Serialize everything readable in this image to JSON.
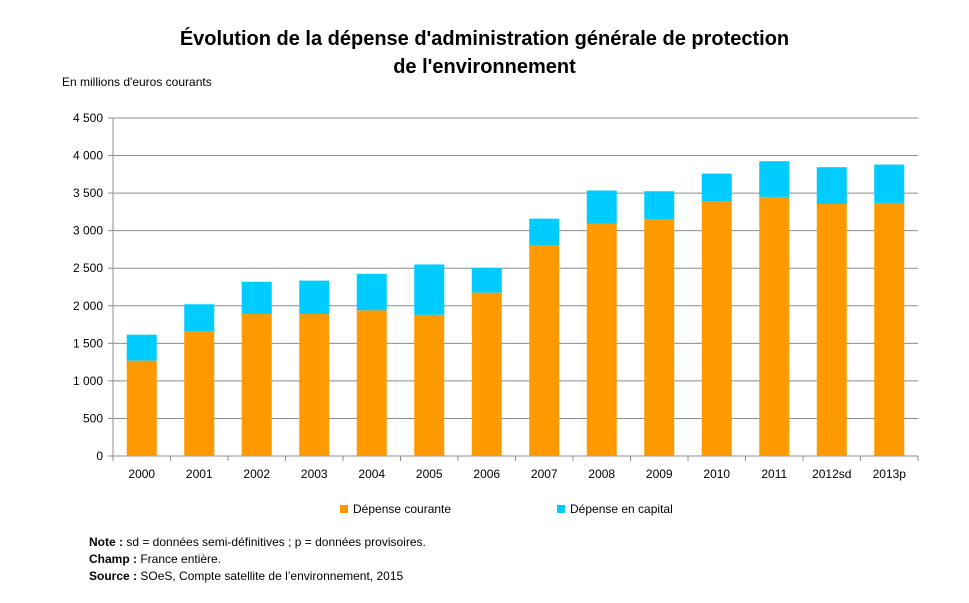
{
  "chart_data": {
    "type": "bar",
    "stacked": true,
    "title_line1": "Évolution de la dépense d'administration générale de protection",
    "title_line2": "de l'environnement",
    "unit_label": "En millions d'euros courants",
    "categories": [
      "2000",
      "2001",
      "2002",
      "2003",
      "2004",
      "2005",
      "2006",
      "2007",
      "2008",
      "2009",
      "2010",
      "2011",
      "2012sd",
      "2013p"
    ],
    "series": [
      {
        "name": "Dépense courante",
        "color": "#FF9900",
        "values": [
          1270,
          1665,
          1890,
          1890,
          1940,
          1880,
          2175,
          2800,
          3095,
          3155,
          3395,
          3450,
          3355,
          3370
        ]
      },
      {
        "name": "Dépense en capital",
        "color": "#00CCFF",
        "values": [
          345,
          355,
          430,
          445,
          485,
          670,
          330,
          360,
          440,
          370,
          365,
          475,
          490,
          510
        ]
      }
    ],
    "ylim": [
      0,
      4500
    ],
    "yticks": [
      0,
      500,
      1000,
      1500,
      2000,
      2500,
      3000,
      3500,
      4000,
      4500
    ],
    "ytick_labels": [
      "0",
      "500",
      "1 000",
      "1 500",
      "2 000",
      "2 500",
      "3 000",
      "3 500",
      "4 000",
      "4 500"
    ],
    "grid": true,
    "legend_position": "bottom"
  },
  "notes": {
    "note_label": "Note :",
    "note_text": " sd = données semi-définitives ; p = données provisoires.",
    "champ_label": "Champ :",
    "champ_text": " France entière.",
    "source_label": "Source :",
    "source_text": " SOeS, Compte satellite de l’environnement, 2015"
  }
}
